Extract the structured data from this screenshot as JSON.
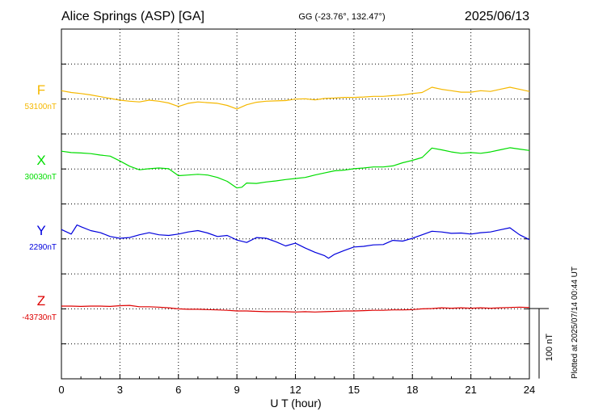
{
  "header": {
    "station": "Alice Springs (ASP)  [GA]",
    "coords": "GG (-23.76°, 132.47°)",
    "date": "2025/06/13"
  },
  "plotted_note": "Plotted at 2025/07/14 00:44 UT",
  "chart_data": {
    "type": "line",
    "title": "Alice Springs (ASP)  [GA]",
    "xlabel": "U T (hour)",
    "xlim": [
      0,
      24
    ],
    "x_ticks": [
      "0",
      "3",
      "6",
      "9",
      "12",
      "15",
      "18",
      "21",
      "24"
    ],
    "grid": true,
    "scale": {
      "label": "100 nT",
      "nT_per_division": 100
    },
    "series": [
      {
        "name": "F",
        "baseline_label": "53100nT",
        "baseline": 53100,
        "color": "#f5b800",
        "x": [
          0,
          0.5,
          1,
          1.5,
          2,
          2.5,
          3,
          3.5,
          4,
          4.5,
          5,
          5.5,
          6,
          6.5,
          7,
          7.5,
          8,
          8.5,
          9,
          9.5,
          10,
          10.5,
          11,
          11.5,
          12,
          12.5,
          13,
          13.5,
          14,
          14.5,
          15,
          15.5,
          16,
          16.5,
          17,
          17.5,
          18,
          18.5,
          19,
          19.5,
          20,
          20.5,
          21,
          21.5,
          22,
          22.5,
          23,
          23.5,
          24
        ],
        "y": [
          53120,
          53115,
          53112,
          53108,
          53103,
          53098,
          53093,
          53090,
          53088,
          53093,
          53090,
          53085,
          53075,
          53084,
          53088,
          53086,
          53084,
          53078,
          53068,
          53080,
          53087,
          53090,
          53091,
          53092,
          53096,
          53097,
          53094,
          53098,
          53099,
          53101,
          53101,
          53102,
          53104,
          53104,
          53106,
          53108,
          53112,
          53115,
          53130,
          53124,
          53120,
          53116,
          53116,
          53120,
          53118,
          53124,
          53130,
          53124,
          53118
        ]
      },
      {
        "name": "X",
        "baseline_label": "30030nT",
        "baseline": 30030,
        "color": "#00dd00",
        "x": [
          0,
          0.5,
          1,
          1.5,
          2,
          2.5,
          3,
          3.5,
          4,
          4.5,
          5,
          5.5,
          6,
          6.5,
          7,
          7.5,
          8,
          8.5,
          9,
          9.25,
          9.5,
          10,
          10.5,
          11,
          11.5,
          12,
          12.5,
          13,
          13.5,
          14,
          14.5,
          15,
          15.5,
          16,
          16.5,
          17,
          17.5,
          18,
          18.5,
          19,
          19.5,
          20,
          20.5,
          21,
          21.5,
          22,
          22.5,
          23,
          23.5,
          24
        ],
        "y": [
          30078,
          30074,
          30073,
          30071,
          30067,
          30064,
          30050,
          30035,
          30025,
          30028,
          30030,
          30028,
          30008,
          30010,
          30012,
          30010,
          30003,
          29992,
          29973,
          29975,
          29987,
          29986,
          29990,
          29993,
          29997,
          30000,
          30003,
          30010,
          30016,
          30022,
          30024,
          30028,
          30030,
          30033,
          30033,
          30036,
          30045,
          30052,
          30060,
          30087,
          30082,
          30076,
          30072,
          30074,
          30072,
          30076,
          30082,
          30088,
          30084,
          30080
        ]
      },
      {
        "name": "Y",
        "baseline_label": "2290nT",
        "baseline": 2290,
        "color": "#0000dd",
        "x": [
          0,
          0.5,
          0.8,
          1,
          1.5,
          2,
          2.5,
          3,
          3.5,
          4,
          4.5,
          5,
          5.5,
          6,
          6.5,
          7,
          7.5,
          8,
          8.5,
          9,
          9.5,
          10,
          10.5,
          11,
          11.5,
          12,
          12.5,
          13,
          13.5,
          13.7,
          14,
          14.5,
          15,
          15.5,
          16,
          16.5,
          17,
          17.5,
          18,
          18.5,
          19,
          19.5,
          20,
          20.5,
          21,
          21.5,
          22,
          22.5,
          23,
          23.5,
          24
        ],
        "y": [
          2315,
          2302,
          2328,
          2323,
          2312,
          2306,
          2295,
          2290,
          2292,
          2300,
          2306,
          2300,
          2298,
          2302,
          2308,
          2312,
          2305,
          2295,
          2298,
          2285,
          2278,
          2292,
          2290,
          2280,
          2268,
          2276,
          2262,
          2250,
          2240,
          2233,
          2244,
          2255,
          2265,
          2267,
          2271,
          2272,
          2284,
          2282,
          2290,
          2300,
          2310,
          2308,
          2304,
          2305,
          2302,
          2306,
          2308,
          2314,
          2320,
          2300,
          2286
        ]
      },
      {
        "name": "Z",
        "baseline_label": "-43730nT",
        "baseline": -43730,
        "color": "#dd0000",
        "x": [
          0,
          0.5,
          1,
          1.5,
          2,
          2.5,
          3,
          3.5,
          4,
          4.5,
          5,
          5.5,
          6,
          6.5,
          7,
          7.5,
          8,
          8.5,
          9,
          9.5,
          10,
          10.5,
          11,
          11.5,
          12,
          12.5,
          13,
          13.5,
          14,
          14.5,
          15,
          15.5,
          16,
          16.5,
          17,
          17.5,
          18,
          18.5,
          19,
          19.5,
          20,
          20.5,
          21,
          21.5,
          22,
          22.5,
          23,
          23.5,
          24
        ],
        "y": [
          -43723,
          -43723,
          -43724,
          -43723,
          -43723,
          -43724,
          -43722,
          -43721,
          -43725,
          -43725,
          -43726,
          -43728,
          -43731,
          -43732,
          -43732,
          -43733,
          -43734,
          -43735,
          -43737,
          -43737,
          -43738,
          -43739,
          -43739,
          -43739,
          -43740,
          -43739,
          -43740,
          -43739,
          -43738,
          -43737,
          -43737,
          -43736,
          -43735,
          -43735,
          -43734,
          -43734,
          -43733,
          -43731,
          -43730,
          -43728,
          -43729,
          -43728,
          -43729,
          -43728,
          -43729,
          -43728,
          -43727,
          -43726,
          -43727
        ]
      }
    ]
  }
}
